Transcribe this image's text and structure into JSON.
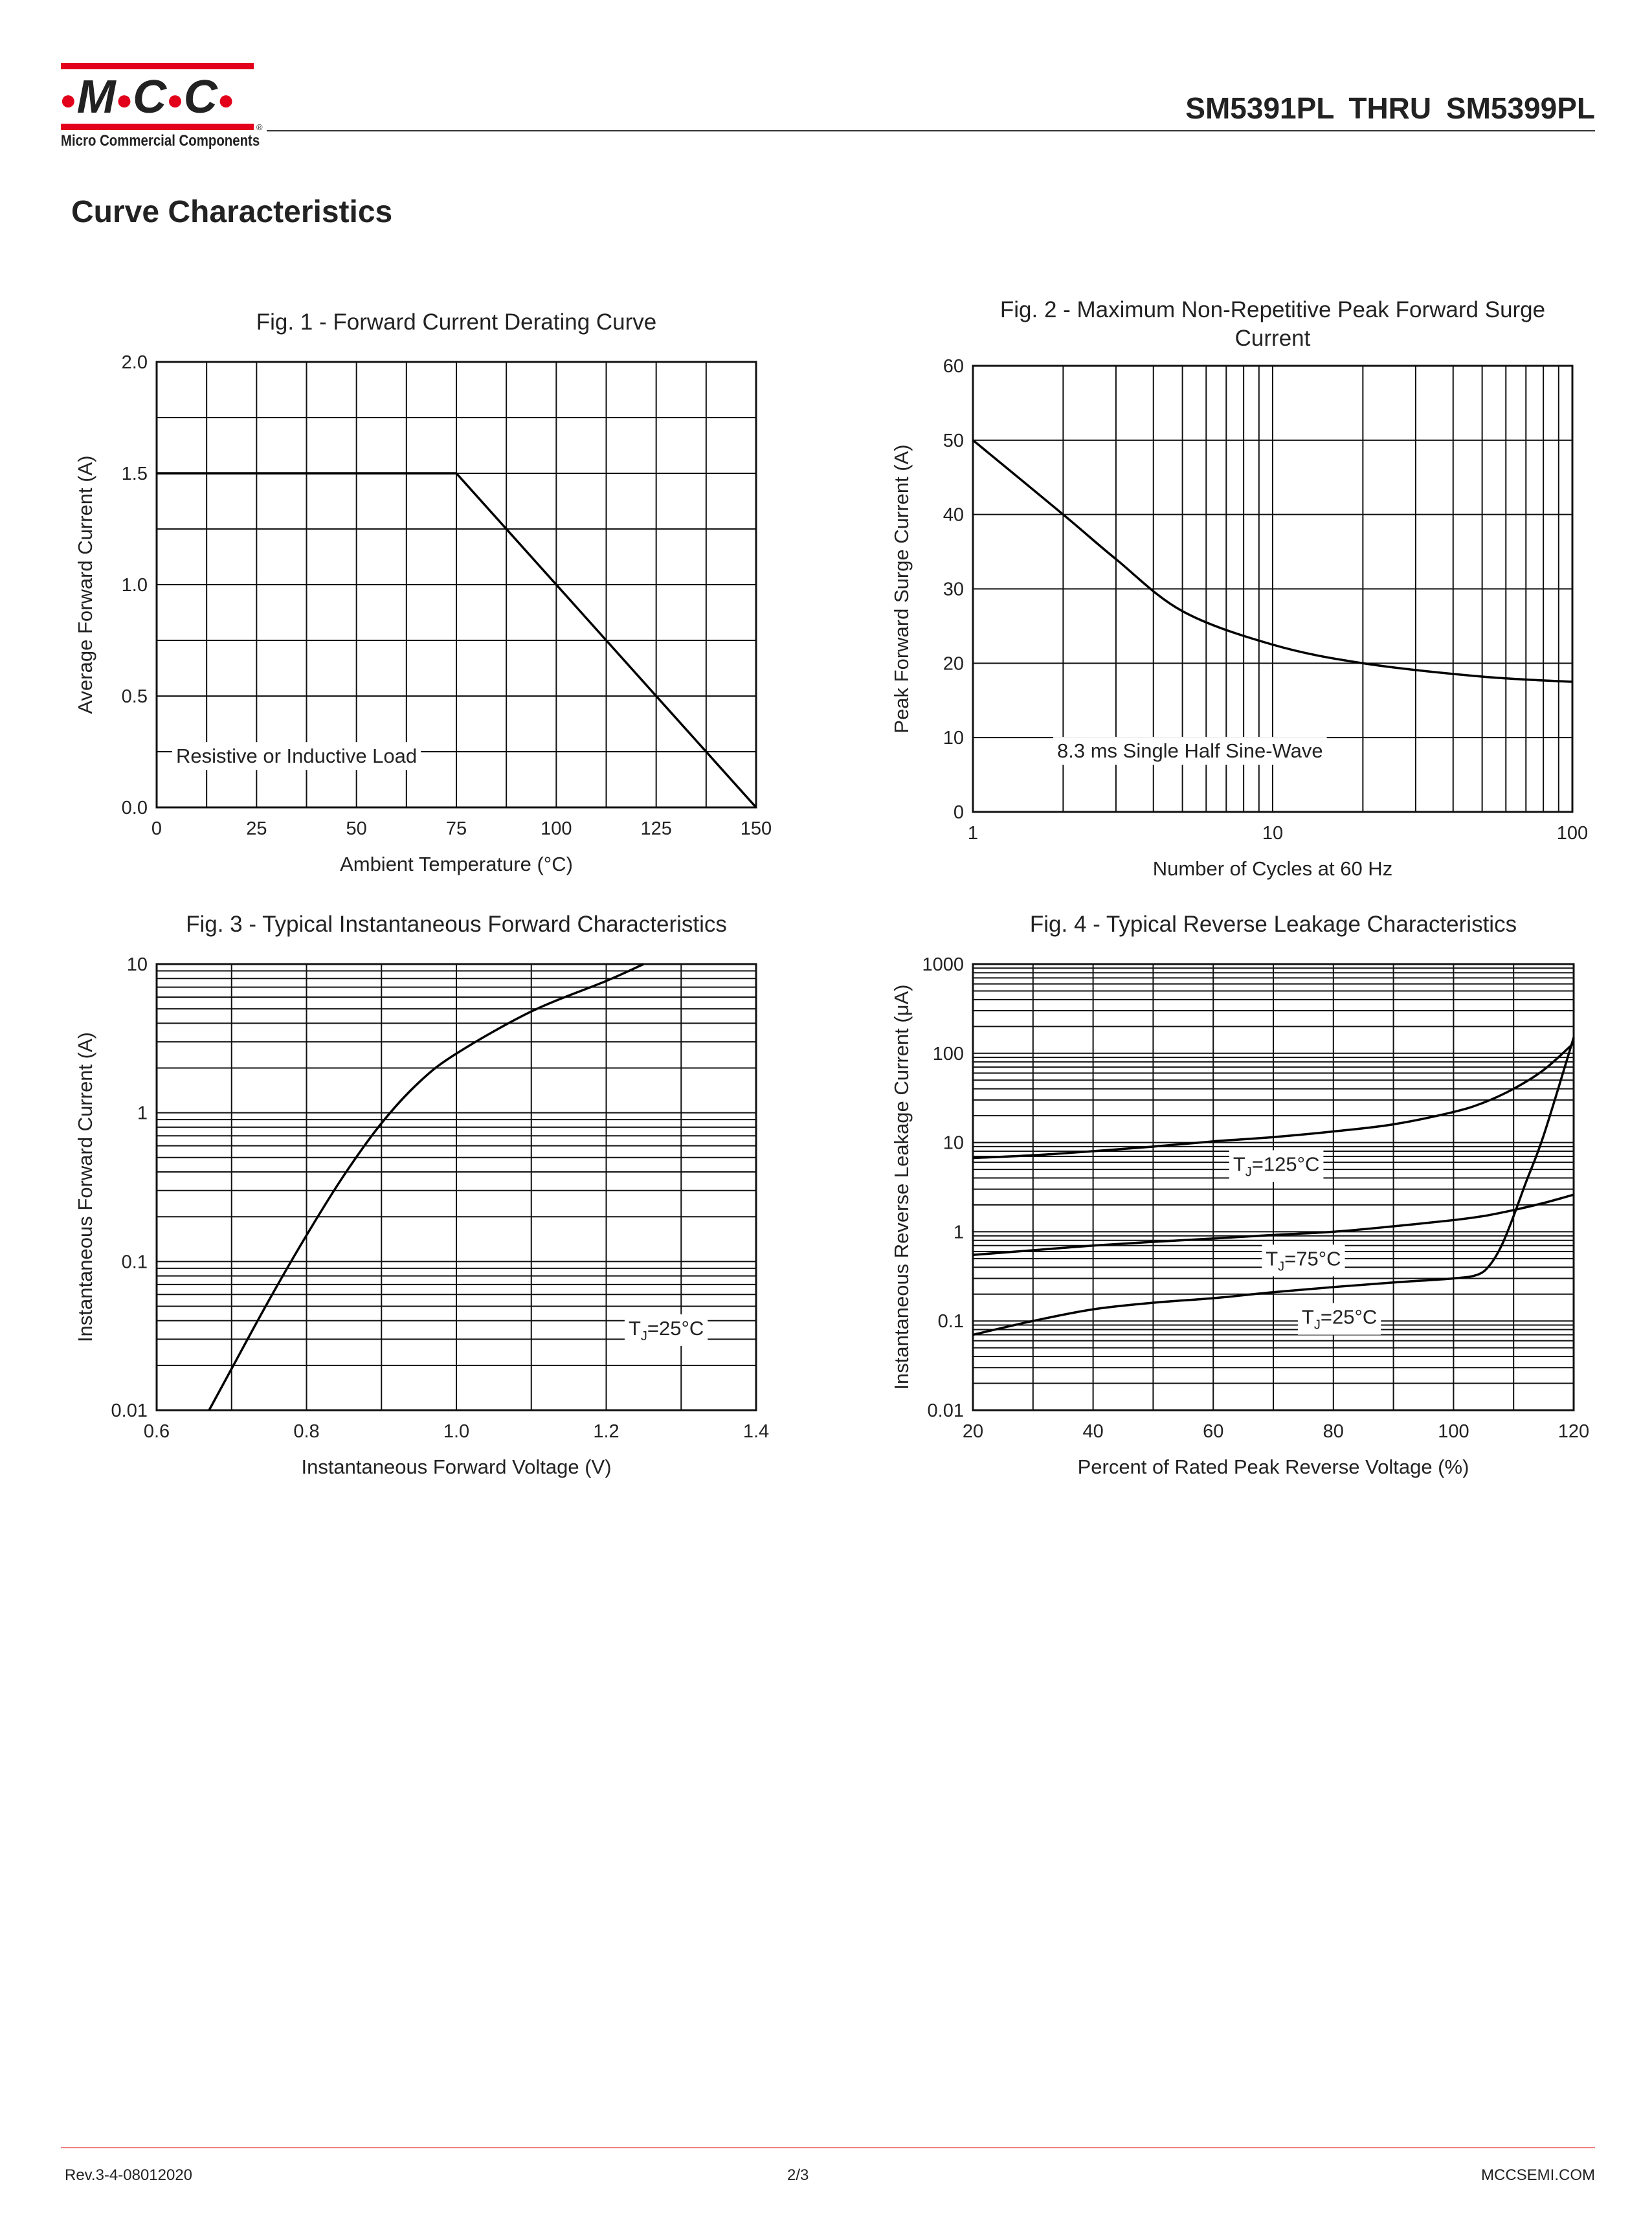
{
  "header": {
    "logo_text": "MCC",
    "logo_subtitle": "Micro Commercial Components",
    "logo_registered": "®",
    "doc_title": "SM5391PL  THRU  SM5399PL",
    "brand_color": "#e2001a"
  },
  "section_title": "Curve Characteristics",
  "footer": {
    "revision": "Rev.3-4-08012020",
    "page": "2/3",
    "website": "MCCSEMI.COM"
  },
  "chart_data": [
    {
      "id": "fig1",
      "type": "line",
      "title": "Fig. 1 - Forward Current Derating Curve",
      "xlabel": "Ambient Temperature (°C)",
      "ylabel": "Average Forward Current (A)",
      "xscale": "linear",
      "yscale": "linear",
      "xlim": [
        0,
        150
      ],
      "ylim": [
        0,
        2.0
      ],
      "xticks": [
        0,
        25,
        50,
        75,
        100,
        125,
        150
      ],
      "xtick_labels": [
        "0",
        "25",
        "50",
        "75",
        "100",
        "125",
        "150"
      ],
      "yticks": [
        0,
        0.5,
        1.0,
        1.5,
        2.0
      ],
      "ytick_labels": [
        "0.0",
        "0.5",
        "1.0",
        "1.5",
        "2.0"
      ],
      "xgrid_step": 12.5,
      "ygrid_step": 0.25,
      "annotations": [
        {
          "text": "Resistive or Inductive Load",
          "x": 35,
          "y": 0.2
        }
      ],
      "series": [
        {
          "name": "derating",
          "smooth": false,
          "x": [
            0,
            75,
            150
          ],
          "y": [
            1.5,
            1.5,
            0
          ]
        }
      ]
    },
    {
      "id": "fig2",
      "type": "line",
      "title": "Fig. 2 - Maximum Non-Repetitive Peak Forward Surge|Current",
      "xlabel": "Number of Cycles at 60 Hz",
      "ylabel": "Peak Forward Surge Current (A)",
      "xscale": "log",
      "yscale": "linear",
      "xlim": [
        1,
        100
      ],
      "ylim": [
        0,
        60
      ],
      "xticks": [
        1,
        10,
        100
      ],
      "xtick_labels": [
        "1",
        "10",
        "100"
      ],
      "yticks": [
        0,
        10,
        20,
        30,
        40,
        50,
        60
      ],
      "ytick_labels": [
        "0",
        "10",
        "20",
        "30",
        "40",
        "50",
        "60"
      ],
      "ygrid_step": 10,
      "annotations": [
        {
          "text": "8.3 ms Single Half Sine-Wave",
          "x": 5.3,
          "y": 7.3
        }
      ],
      "series": [
        {
          "name": "surge",
          "smooth": true,
          "x": [
            1,
            2,
            3,
            5,
            10,
            20,
            50,
            100
          ],
          "y": [
            50,
            40,
            34,
            27,
            22.5,
            20,
            18.2,
            17.5
          ]
        }
      ]
    },
    {
      "id": "fig3",
      "type": "line",
      "title": "Fig. 3 - Typical Instantaneous Forward Characteristics",
      "xlabel": "Instantaneous Forward Voltage (V)",
      "ylabel": "Instantaneous Forward Current (A)",
      "xscale": "linear",
      "yscale": "log",
      "xlim": [
        0.6,
        1.4
      ],
      "ylim": [
        0.01,
        10
      ],
      "xticks": [
        0.6,
        0.8,
        1.0,
        1.2,
        1.4
      ],
      "xtick_labels": [
        "0.6",
        "0.8",
        "1.0",
        "1.2",
        "1.4"
      ],
      "yticks": [
        0.01,
        0.1,
        1,
        10
      ],
      "ytick_labels": [
        "0.01",
        "0.1",
        "1",
        "10"
      ],
      "xgrid_step": 0.1,
      "annotations": [
        {
          "text": "T",
          "sub": "J",
          "rest": "=25°C",
          "x": 1.28,
          "y": 0.032
        }
      ],
      "series": [
        {
          "name": "TJ=25°C",
          "smooth": true,
          "x": [
            0.67,
            0.7,
            0.75,
            0.8,
            0.85,
            0.9,
            0.95,
            1.0,
            1.1,
            1.2,
            1.25
          ],
          "y": [
            0.01,
            0.019,
            0.055,
            0.15,
            0.38,
            0.85,
            1.6,
            2.5,
            4.8,
            7.7,
            10
          ]
        }
      ]
    },
    {
      "id": "fig4",
      "type": "line",
      "title": "Fig. 4 - Typical Reverse Leakage Characteristics",
      "xlabel": "Percent of Rated Peak Reverse Voltage (%)",
      "ylabel": "Instantaneous Reverse Leakage Current (μA)",
      "xscale": "linear",
      "yscale": "log",
      "xlim": [
        20,
        120
      ],
      "ylim": [
        0.01,
        1000
      ],
      "xticks": [
        20,
        40,
        60,
        80,
        100,
        120
      ],
      "xtick_labels": [
        "20",
        "40",
        "60",
        "80",
        "100",
        "120"
      ],
      "yticks": [
        0.01,
        0.1,
        1,
        10,
        100,
        1000
      ],
      "ytick_labels": [
        "0.01",
        "0.1",
        "1",
        "10",
        "100",
        "1000"
      ],
      "xgrid_step": 10,
      "annotations": [
        {
          "text": "T",
          "sub": "J",
          "rest": "=125°C",
          "x": 70.5,
          "y": 4.8
        },
        {
          "text": "T",
          "sub": "J",
          "rest": "=75°C",
          "x": 75,
          "y": 0.42
        },
        {
          "text": "T",
          "sub": "J",
          "rest": "=25°C",
          "x": 81,
          "y": 0.093
        }
      ],
      "series": [
        {
          "name": "TJ=125°C",
          "smooth": true,
          "x": [
            20,
            30,
            40,
            50,
            60,
            70,
            80,
            90,
            100,
            105,
            110,
            115,
            120
          ],
          "y": [
            6.7,
            7.2,
            8,
            9,
            10.3,
            11.5,
            13.3,
            16,
            22,
            28,
            40,
            65,
            130
          ]
        },
        {
          "name": "TJ=75°C",
          "smooth": true,
          "x": [
            20,
            30,
            40,
            50,
            60,
            70,
            80,
            90,
            100,
            105,
            110,
            115,
            120
          ],
          "y": [
            0.55,
            0.62,
            0.7,
            0.77,
            0.84,
            0.92,
            1.0,
            1.15,
            1.35,
            1.5,
            1.75,
            2.1,
            2.6
          ]
        },
        {
          "name": "TJ=25°C",
          "smooth": true,
          "x": [
            20,
            30,
            40,
            50,
            60,
            70,
            80,
            90,
            100,
            104,
            106,
            108,
            110,
            112,
            115,
            120
          ],
          "y": [
            0.07,
            0.1,
            0.135,
            0.16,
            0.18,
            0.21,
            0.24,
            0.27,
            0.3,
            0.33,
            0.42,
            0.7,
            1.5,
            3.5,
            12,
            150
          ]
        }
      ]
    }
  ]
}
